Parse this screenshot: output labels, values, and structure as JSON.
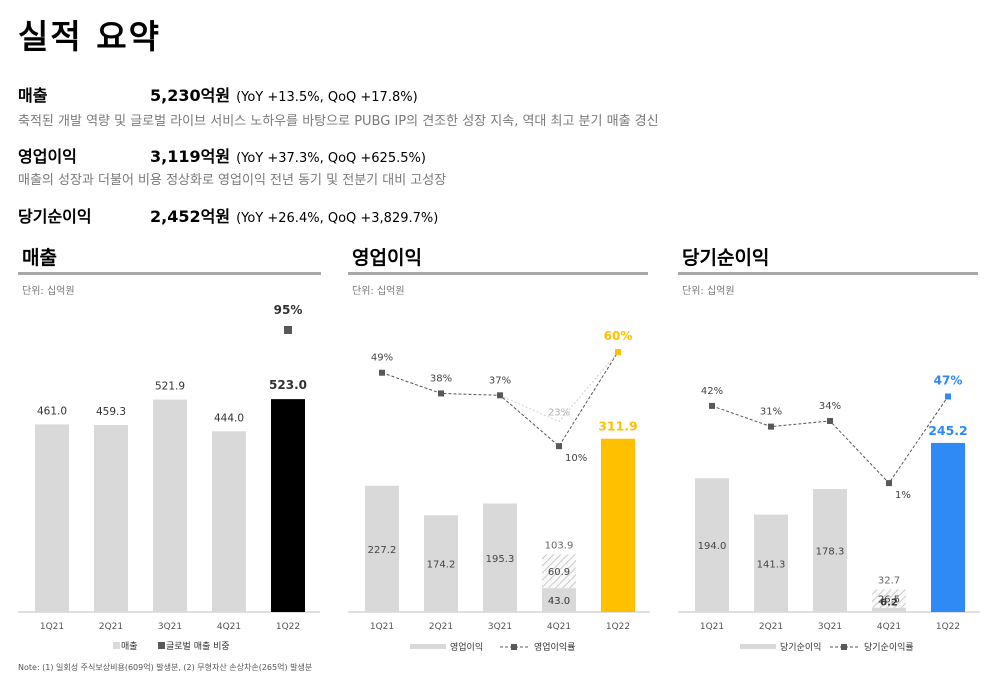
{
  "title": "실적 요약",
  "summary": {
    "revenue": {
      "label": "매출",
      "value": "5,230억원",
      "delta": "(YoY +13.5%, QoQ +17.8%)",
      "desc": "축적된 개발 역량 및 글로벌 라이브 서비스 노하우를 바탕으로 PUBG IP의 견조한 성장 지속, 역대 최고 분기 매출 경신"
    },
    "op": {
      "label": "영업이익",
      "value": "3,119억원",
      "delta": "(YoY +37.3%, QoQ +625.5%)",
      "desc": "매출의 성장과 더불어 비용 정상화로 영업이익 전년 동기 및 전분기 대비 고성장"
    },
    "net": {
      "label": "당기순이익",
      "value": "2,452억원",
      "delta": "(YoY +26.4%, QoQ +3,829.7%)"
    }
  },
  "panels": [
    {
      "title": "매출",
      "unit": "단위: 십억원"
    },
    {
      "title": "영업이익",
      "unit": "단위: 십억원"
    },
    {
      "title": "당기순이익",
      "unit": "단위: 십억원"
    }
  ],
  "colors": {
    "gray_bar": "#d9d9d9",
    "revenue_highlight": "#000000",
    "op_highlight": "#ffc000",
    "net_highlight": "#2f8af5",
    "line": "#555555",
    "marker": "#595959"
  },
  "chart_data": [
    {
      "type": "bar",
      "title": "매출",
      "unit": "단위: 십억원",
      "categories": [
        "1Q21",
        "2Q21",
        "3Q21",
        "4Q21",
        "1Q22"
      ],
      "values": [
        461.0,
        459.3,
        521.9,
        444.0,
        523.0
      ],
      "value_labels": [
        "461.0",
        "459.3",
        "521.9",
        "444.0",
        "523.0"
      ],
      "global_share": {
        "name": "글로벌 매출 비중",
        "values": [
          null,
          null,
          null,
          null,
          95
        ],
        "labels": [
          "",
          "",
          "",
          "",
          "95%"
        ]
      },
      "legend": [
        "매출",
        "글로벌 매출 비중"
      ],
      "ylim": [
        0,
        600
      ]
    },
    {
      "type": "bar+line",
      "title": "영업이익",
      "unit": "단위: 십억원",
      "categories": [
        "1Q21",
        "2Q21",
        "3Q21",
        "4Q21",
        "1Q22"
      ],
      "values": [
        227.2,
        174.2,
        195.3,
        43.0,
        311.9
      ],
      "value_labels": [
        "227.2",
        "174.2",
        "195.3",
        "43.0",
        "311.9"
      ],
      "one_off": {
        "index": 3,
        "value": 60.9,
        "label": "60.9",
        "adjusted_total": 103.9,
        "adjusted_label": "103.9"
      },
      "margin": {
        "name": "영업이익률",
        "values": [
          49,
          38,
          37,
          10,
          60
        ],
        "labels": [
          "49%",
          "38%",
          "37%",
          "10%",
          "60%"
        ],
        "adjusted_value": 23,
        "adjusted_label": "23%"
      },
      "legend": [
        "영업이익",
        "영업이익률"
      ],
      "ylim": [
        0,
        400
      ]
    },
    {
      "type": "bar+line",
      "title": "당기순이익",
      "unit": "단위: 십억원",
      "categories": [
        "1Q21",
        "2Q21",
        "3Q21",
        "4Q21",
        "1Q22"
      ],
      "values": [
        194.0,
        141.3,
        178.3,
        6.2,
        245.2
      ],
      "value_labels": [
        "194.0",
        "141.3",
        "178.3",
        "6.2",
        "245.2"
      ],
      "one_off": {
        "index": 3,
        "value": 26.5,
        "label": "26.5",
        "adjusted_total": 32.7,
        "adjusted_label": "32.7"
      },
      "margin": {
        "name": "당기순이익률",
        "values": [
          42,
          31,
          34,
          1,
          47
        ],
        "labels": [
          "42%",
          "31%",
          "34%",
          "1%",
          "47%"
        ]
      },
      "legend": [
        "당기순이익",
        "당기순이익률"
      ],
      "ylim": [
        0,
        350
      ]
    }
  ],
  "note": "Note: (1) 일회성 주식보상비용(609억) 발생분, (2) 무형자산 손상차손(265억) 발생분"
}
